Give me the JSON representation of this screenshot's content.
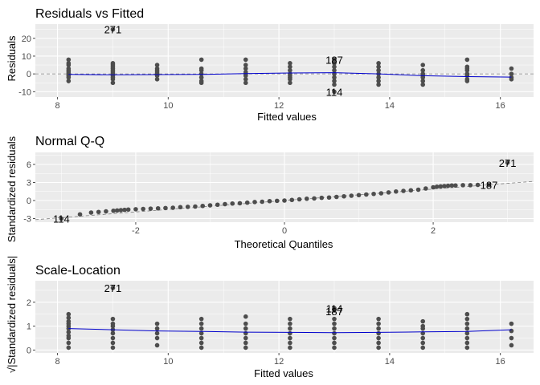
{
  "colors": {
    "panel": "#ebebeb",
    "grid_major": "#ffffff",
    "point": "#4d4d4d",
    "smooth": "#0000cc",
    "reference": "#7f7f7f",
    "tick": "#4d4d4d"
  },
  "chart_data": [
    {
      "type": "scatter",
      "title": "Residuals vs Fitted",
      "xlabel": "Fitted values",
      "ylabel": "Residuals",
      "xlim": [
        7.6,
        16.6
      ],
      "ylim": [
        -13,
        28
      ],
      "xticks": [
        8,
        10,
        12,
        14,
        16
      ],
      "yticks": [
        -10,
        0,
        10,
        20
      ],
      "grid": true,
      "reference_line": {
        "type": "horizontal",
        "y": 0,
        "style": "dashed"
      },
      "point_columns": [
        {
          "x": 8.2,
          "y": [
            -4,
            -2,
            -1,
            0,
            1,
            2,
            3,
            5,
            6,
            8
          ]
        },
        {
          "x": 9.0,
          "y": [
            -5,
            -3,
            -2,
            -1,
            0,
            1,
            2,
            3,
            4,
            5,
            6
          ]
        },
        {
          "x": 9.8,
          "y": [
            -3,
            -1,
            0,
            1,
            2,
            3,
            5
          ]
        },
        {
          "x": 10.6,
          "y": [
            -5,
            -4,
            -2,
            0,
            2,
            3,
            8
          ]
        },
        {
          "x": 11.4,
          "y": [
            -5,
            -3,
            -1,
            0,
            1,
            3,
            5,
            8
          ]
        },
        {
          "x": 12.2,
          "y": [
            -5,
            -3,
            -2,
            -1,
            0,
            2,
            4,
            6
          ]
        },
        {
          "x": 13.0,
          "y": [
            -6,
            -4,
            -2,
            0,
            2,
            4,
            6
          ]
        },
        {
          "x": 13.8,
          "y": [
            -6,
            -4,
            -2,
            0,
            2,
            4,
            6
          ]
        },
        {
          "x": 14.6,
          "y": [
            -6,
            -4,
            -2,
            -1,
            0,
            2,
            5
          ]
        },
        {
          "x": 15.4,
          "y": [
            -4,
            -3,
            -1,
            0,
            2,
            3,
            4,
            8
          ]
        },
        {
          "x": 16.2,
          "y": [
            -3,
            -2,
            0,
            3
          ]
        }
      ],
      "extra_points": [
        {
          "x": 9.0,
          "y": 25
        },
        {
          "x": 13.0,
          "y": 8
        },
        {
          "x": 13.0,
          "y": -10
        }
      ],
      "smooth_line": {
        "x": [
          8.2,
          9.0,
          9.8,
          10.6,
          11.4,
          12.2,
          13.0,
          13.8,
          14.6,
          15.4,
          16.2
        ],
        "y": [
          -0.3,
          -0.5,
          -0.4,
          -0.3,
          0.2,
          0.5,
          0.7,
          0.0,
          -1.0,
          -1.5,
          -1.8
        ]
      },
      "annotations": [
        {
          "label": "271",
          "x": 9.0,
          "y": 25
        },
        {
          "label": "187",
          "x": 13.0,
          "y": 8
        },
        {
          "label": "114",
          "x": 13.0,
          "y": -10
        }
      ]
    },
    {
      "type": "scatter",
      "title": "Normal Q-Q",
      "xlabel": "Theoretical Quantiles",
      "ylabel": "Standardized residuals",
      "xlim": [
        -3.35,
        3.35
      ],
      "ylim": [
        -3.6,
        8.0
      ],
      "xticks": [
        -2,
        0,
        2
      ],
      "yticks": [
        -3,
        0,
        3,
        6
      ],
      "grid": true,
      "reference_line": {
        "type": "diagonal",
        "intercept": 0,
        "slope": 0.95,
        "style": "dashed"
      },
      "sample_points": {
        "x": [
          -3.0,
          -2.75,
          -2.6,
          -2.5,
          -2.4,
          -2.3,
          -2.25,
          -2.2,
          -2.15,
          -2.1,
          -2.0,
          -1.9,
          -1.8,
          -1.7,
          -1.6,
          -1.5,
          -1.4,
          -1.3,
          -1.2,
          -1.1,
          -1.0,
          -0.9,
          -0.8,
          -0.7,
          -0.6,
          -0.5,
          -0.4,
          -0.3,
          -0.2,
          -0.1,
          0.0,
          0.1,
          0.2,
          0.3,
          0.4,
          0.5,
          0.6,
          0.7,
          0.8,
          0.9,
          1.0,
          1.1,
          1.2,
          1.3,
          1.4,
          1.5,
          1.6,
          1.7,
          1.8,
          1.9,
          2.0,
          2.05,
          2.1,
          2.15,
          2.2,
          2.25,
          2.3,
          2.4,
          2.5,
          2.6,
          2.75,
          3.0
        ],
        "y": [
          -3.0,
          -2.3,
          -2.0,
          -1.9,
          -1.8,
          -1.7,
          -1.65,
          -1.6,
          -1.55,
          -1.5,
          -1.45,
          -1.4,
          -1.35,
          -1.3,
          -1.25,
          -1.2,
          -1.1,
          -1.05,
          -1.0,
          -0.9,
          -0.8,
          -0.7,
          -0.6,
          -0.5,
          -0.45,
          -0.35,
          -0.25,
          -0.2,
          -0.1,
          -0.05,
          0.0,
          0.1,
          0.2,
          0.3,
          0.35,
          0.45,
          0.5,
          0.6,
          0.7,
          0.8,
          0.9,
          1.0,
          1.1,
          1.2,
          1.35,
          1.5,
          1.6,
          1.7,
          1.8,
          2.0,
          2.2,
          2.3,
          2.35,
          2.4,
          2.45,
          2.5,
          2.5,
          2.55,
          2.55,
          2.6,
          2.6,
          6.3
        ]
      },
      "annotations": [
        {
          "label": "271",
          "x": 3.0,
          "y": 6.3
        },
        {
          "label": "187",
          "x": 2.75,
          "y": 2.6
        },
        {
          "label": "114",
          "x": -3.0,
          "y": -3.0
        }
      ]
    },
    {
      "type": "scatter",
      "title": "Scale-Location",
      "xlabel": "Fitted values",
      "ylabel": "√|Standardized residuals|",
      "xlim": [
        7.6,
        16.6
      ],
      "ylim": [
        -0.12,
        2.9
      ],
      "xticks": [
        8,
        10,
        12,
        14,
        16
      ],
      "yticks": [
        0,
        1,
        2
      ],
      "grid": true,
      "point_columns": [
        {
          "x": 8.2,
          "y": [
            0.1,
            0.3,
            0.5,
            0.6,
            0.75,
            0.9,
            1.0,
            1.1,
            1.2,
            1.35,
            1.5
          ]
        },
        {
          "x": 9.0,
          "y": [
            0.1,
            0.3,
            0.5,
            0.7,
            0.85,
            1.0,
            1.1,
            1.3
          ]
        },
        {
          "x": 9.8,
          "y": [
            0.2,
            0.5,
            0.7,
            0.9,
            1.1
          ]
        },
        {
          "x": 10.6,
          "y": [
            0.1,
            0.3,
            0.5,
            0.7,
            0.9,
            1.1,
            1.3
          ]
        },
        {
          "x": 11.4,
          "y": [
            0.1,
            0.3,
            0.5,
            0.7,
            0.9,
            1.1,
            1.4
          ]
        },
        {
          "x": 12.2,
          "y": [
            0.1,
            0.3,
            0.5,
            0.7,
            0.9,
            1.1,
            1.3
          ]
        },
        {
          "x": 13.0,
          "y": [
            0.1,
            0.3,
            0.5,
            0.7,
            0.9,
            1.1,
            1.3
          ]
        },
        {
          "x": 13.8,
          "y": [
            0.1,
            0.3,
            0.5,
            0.7,
            0.9,
            1.1,
            1.3
          ]
        },
        {
          "x": 14.6,
          "y": [
            0.1,
            0.3,
            0.5,
            0.7,
            0.9,
            1.0,
            1.2
          ]
        },
        {
          "x": 15.4,
          "y": [
            0.1,
            0.3,
            0.5,
            0.7,
            0.9,
            1.1,
            1.3,
            1.5
          ]
        },
        {
          "x": 16.2,
          "y": [
            0.2,
            0.5,
            0.8,
            1.1
          ]
        }
      ],
      "extra_points": [
        {
          "x": 9.0,
          "y": 2.6
        },
        {
          "x": 13.0,
          "y": 1.75
        },
        {
          "x": 13.0,
          "y": 1.7
        }
      ],
      "smooth_line": {
        "x": [
          8.2,
          9.0,
          9.8,
          10.6,
          11.4,
          12.2,
          13.0,
          13.8,
          14.6,
          15.4,
          16.2
        ],
        "y": [
          0.9,
          0.85,
          0.8,
          0.78,
          0.75,
          0.74,
          0.73,
          0.74,
          0.76,
          0.78,
          0.85
        ]
      },
      "annotations": [
        {
          "label": "271",
          "x": 9.0,
          "y": 2.6
        },
        {
          "label": "114",
          "x": 13.0,
          "y": 1.75
        },
        {
          "label": "187",
          "x": 13.0,
          "y": 1.62
        }
      ]
    }
  ]
}
